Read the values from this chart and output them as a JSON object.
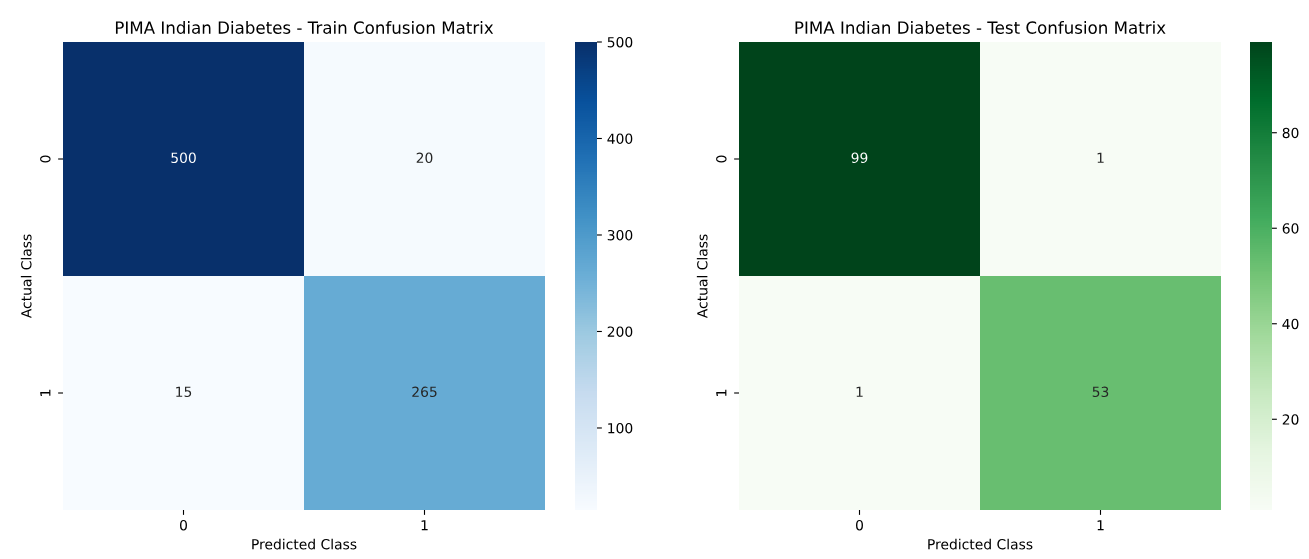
{
  "chart_data": [
    {
      "type": "heatmap",
      "title": "PIMA Indian Diabetes - Train Confusion Matrix",
      "xlabel": "Predicted Class",
      "ylabel": "Actual Class",
      "categories": [
        "0",
        "1"
      ],
      "y_categories": [
        "0",
        "1"
      ],
      "cells": [
        [
          500,
          20
        ],
        [
          15,
          265
        ]
      ],
      "data_labels": true,
      "clim": [
        15,
        500
      ],
      "cticks": [
        100,
        200,
        300,
        400,
        500
      ],
      "colors": [
        "#f7fbff",
        "#deebf7",
        "#c6dbef",
        "#9ecae1",
        "#6baed6",
        "#4292c6",
        "#2171b5",
        "#08519c",
        "#08306b"
      ]
    },
    {
      "type": "heatmap",
      "title": "PIMA Indian Diabetes - Test Confusion Matrix",
      "xlabel": "Predicted Class",
      "ylabel": "Actual Class",
      "categories": [
        "0",
        "1"
      ],
      "y_categories": [
        "0",
        "1"
      ],
      "cells": [
        [
          99,
          1
        ],
        [
          1,
          53
        ]
      ],
      "data_labels": true,
      "clim": [
        1,
        99
      ],
      "cticks": [
        20,
        40,
        60,
        80
      ],
      "colors": [
        "#f7fcf5",
        "#e5f5e0",
        "#c7e9c0",
        "#a1d99b",
        "#74c476",
        "#41ab5d",
        "#238b45",
        "#006d2c",
        "#00441b"
      ]
    }
  ]
}
